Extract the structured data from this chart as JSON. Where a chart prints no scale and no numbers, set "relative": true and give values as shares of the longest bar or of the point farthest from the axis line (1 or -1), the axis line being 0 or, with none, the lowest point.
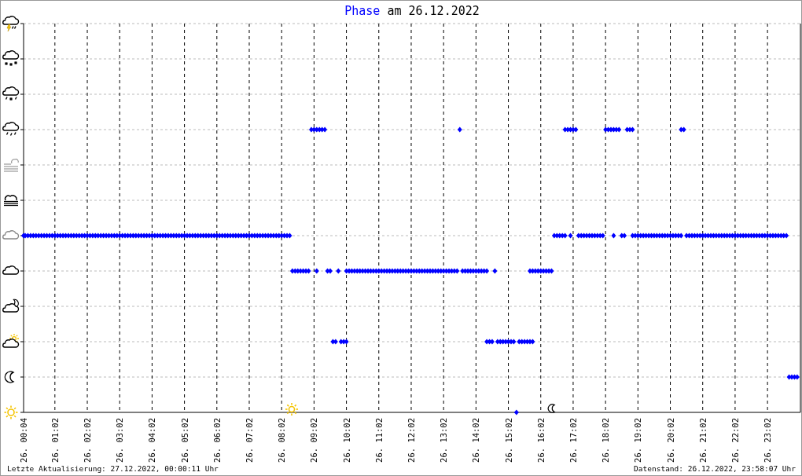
{
  "chart_data": {
    "type": "scatter",
    "title": "Phase am 26.12.2022",
    "color": "#0000ff",
    "marker": "diamond",
    "grid": true,
    "relative": true,
    "xlim": [
      "2022-12-26T00:04",
      "2022-12-27T00:03"
    ],
    "xticks": [
      {
        "value": "2022-12-26T00:04",
        "label": "26. 00:04"
      },
      {
        "value": "2022-12-26T01:02",
        "label": "26. 01:02"
      },
      {
        "value": "2022-12-26T02:02",
        "label": "26. 02:02"
      },
      {
        "value": "2022-12-26T03:02",
        "label": "26. 03:02"
      },
      {
        "value": "2022-12-26T04:02",
        "label": "26. 04:02"
      },
      {
        "value": "2022-12-26T05:02",
        "label": "26. 05:02"
      },
      {
        "value": "2022-12-26T06:02",
        "label": "26. 06:02"
      },
      {
        "value": "2022-12-26T07:02",
        "label": "26. 07:02"
      },
      {
        "value": "2022-12-26T08:02",
        "label": "26. 08:02"
      },
      {
        "value": "2022-12-26T09:02",
        "label": "26. 09:02"
      },
      {
        "value": "2022-12-26T10:02",
        "label": "26. 10:02"
      },
      {
        "value": "2022-12-26T11:02",
        "label": "26. 11:02"
      },
      {
        "value": "2022-12-26T12:02",
        "label": "26. 12:02"
      },
      {
        "value": "2022-12-26T13:02",
        "label": "26. 13:02"
      },
      {
        "value": "2022-12-26T14:02",
        "label": "26. 14:02"
      },
      {
        "value": "2022-12-26T15:02",
        "label": "26. 15:02"
      },
      {
        "value": "2022-12-26T16:02",
        "label": "26. 16:02"
      },
      {
        "value": "2022-12-26T17:02",
        "label": "26. 17:02"
      },
      {
        "value": "2022-12-26T18:02",
        "label": "26. 18:02"
      },
      {
        "value": "2022-12-26T19:02",
        "label": "26. 19:02"
      },
      {
        "value": "2022-12-26T20:02",
        "label": "26. 20:02"
      },
      {
        "value": "2022-12-26T21:02",
        "label": "26. 21:02"
      },
      {
        "value": "2022-12-26T22:02",
        "label": "26. 22:02"
      },
      {
        "value": "2022-12-26T23:02",
        "label": "26. 23:02"
      }
    ],
    "annotations": [
      "Letzte Aktualisierung: 27.12.2022, 00:00:11 Uhr",
      "Datenstand: 26.12.2022, 23:58:07 Uhr"
    ],
    "x": [
      "2022-12-26T00:04",
      "2022-12-26T00:07",
      "2022-12-26T00:12",
      "2022-12-26T00:17",
      "2022-12-26T00:22",
      "2022-12-26T00:27",
      "2022-12-26T00:32",
      "2022-12-26T00:37",
      "2022-12-26T00:42",
      "2022-12-26T00:47",
      "2022-12-26T00:52",
      "2022-12-26T00:57",
      "2022-12-26T01:02",
      "2022-12-26T01:07",
      "2022-12-26T01:12",
      "2022-12-26T01:17",
      "2022-12-26T01:22",
      "2022-12-26T01:27",
      "2022-12-26T01:32",
      "2022-12-26T01:37",
      "2022-12-26T01:42",
      "2022-12-26T01:47",
      "2022-12-26T01:52",
      "2022-12-26T01:57",
      "2022-12-26T02:02",
      "2022-12-26T02:07",
      "2022-12-26T02:12",
      "2022-12-26T02:17",
      "2022-12-26T02:22",
      "2022-12-26T02:27",
      "2022-12-26T02:32",
      "2022-12-26T02:37",
      "2022-12-26T02:42",
      "2022-12-26T02:47",
      "2022-12-26T02:52",
      "2022-12-26T02:57",
      "2022-12-26T03:02",
      "2022-12-26T03:07",
      "2022-12-26T03:12",
      "2022-12-26T03:17",
      "2022-12-26T03:22",
      "2022-12-26T03:27",
      "2022-12-26T03:32",
      "2022-12-26T03:37",
      "2022-12-26T03:42",
      "2022-12-26T03:47",
      "2022-12-26T03:52",
      "2022-12-26T03:57",
      "2022-12-26T04:02",
      "2022-12-26T04:07",
      "2022-12-26T04:12",
      "2022-12-26T04:17",
      "2022-12-26T04:22",
      "2022-12-26T04:27",
      "2022-12-26T04:32",
      "2022-12-26T04:37",
      "2022-12-26T04:42",
      "2022-12-26T04:47",
      "2022-12-26T04:52",
      "2022-12-26T04:57",
      "2022-12-26T05:02",
      "2022-12-26T05:07",
      "2022-12-26T05:12",
      "2022-12-26T05:17",
      "2022-12-26T05:22",
      "2022-12-26T05:27",
      "2022-12-26T05:32",
      "2022-12-26T05:37",
      "2022-12-26T05:42",
      "2022-12-26T05:47",
      "2022-12-26T05:52",
      "2022-12-26T05:57",
      "2022-12-26T06:02",
      "2022-12-26T06:07",
      "2022-12-26T06:12",
      "2022-12-26T06:17",
      "2022-12-26T06:22",
      "2022-12-26T06:27",
      "2022-12-26T06:32",
      "2022-12-26T06:37",
      "2022-12-26T06:42",
      "2022-12-26T06:47",
      "2022-12-26T06:52",
      "2022-12-26T06:57",
      "2022-12-26T07:02",
      "2022-12-26T07:07",
      "2022-12-26T07:12",
      "2022-12-26T07:17",
      "2022-12-26T07:22",
      "2022-12-26T07:27",
      "2022-12-26T07:32",
      "2022-12-26T07:37",
      "2022-12-26T07:42",
      "2022-12-26T07:47",
      "2022-12-26T07:52",
      "2022-12-26T07:57",
      "2022-12-26T08:02",
      "2022-12-26T08:07",
      "2022-12-26T08:12",
      "2022-12-26T08:17",
      "2022-12-26T08:22",
      "2022-12-26T08:27",
      "2022-12-26T08:32",
      "2022-12-26T08:37",
      "2022-12-26T08:42",
      "2022-12-26T08:47",
      "2022-12-26T08:52",
      "2022-12-26T08:57",
      "2022-12-26T09:02",
      "2022-12-26T09:07",
      "2022-12-26T09:07",
      "2022-12-26T09:12",
      "2022-12-26T09:17",
      "2022-12-26T09:22",
      "2022-12-26T09:27",
      "2022-12-26T09:32",
      "2022-12-26T09:37",
      "2022-12-26T09:42",
      "2022-12-26T09:47",
      "2022-12-26T09:52",
      "2022-12-26T09:57",
      "2022-12-26T10:02",
      "2022-12-26T10:02",
      "2022-12-26T10:07",
      "2022-12-26T10:12",
      "2022-12-26T10:17",
      "2022-12-26T10:22",
      "2022-12-26T10:27",
      "2022-12-26T10:32",
      "2022-12-26T10:37",
      "2022-12-26T10:42",
      "2022-12-26T10:47",
      "2022-12-26T10:52",
      "2022-12-26T10:57",
      "2022-12-26T11:02",
      "2022-12-26T11:07",
      "2022-12-26T11:12",
      "2022-12-26T11:17",
      "2022-12-26T11:22",
      "2022-12-26T11:27",
      "2022-12-26T11:32",
      "2022-12-26T11:37",
      "2022-12-26T11:42",
      "2022-12-26T11:47",
      "2022-12-26T11:52",
      "2022-12-26T11:57",
      "2022-12-26T12:02",
      "2022-12-26T12:07",
      "2022-12-26T12:12",
      "2022-12-26T12:17",
      "2022-12-26T12:22",
      "2022-12-26T12:27",
      "2022-12-26T12:32",
      "2022-12-26T12:37",
      "2022-12-26T12:42",
      "2022-12-26T12:47",
      "2022-12-26T12:52",
      "2022-12-26T12:57",
      "2022-12-26T13:02",
      "2022-12-26T13:07",
      "2022-12-26T13:12",
      "2022-12-26T13:17",
      "2022-12-26T13:22",
      "2022-12-26T13:27",
      "2022-12-26T13:32",
      "2022-12-26T13:37",
      "2022-12-26T13:42",
      "2022-12-26T13:47",
      "2022-12-26T13:52",
      "2022-12-26T13:57",
      "2022-12-26T14:02",
      "2022-12-26T14:07",
      "2022-12-26T14:12",
      "2022-12-26T14:17",
      "2022-12-26T14:22",
      "2022-12-26T14:22",
      "2022-12-26T14:27",
      "2022-12-26T14:32",
      "2022-12-26T14:37",
      "2022-12-26T14:42",
      "2022-12-26T14:47",
      "2022-12-26T14:52",
      "2022-12-26T14:57",
      "2022-12-26T15:02",
      "2022-12-26T15:07",
      "2022-12-26T15:12",
      "2022-12-26T15:17",
      "2022-12-26T15:22",
      "2022-12-26T15:27",
      "2022-12-26T15:32",
      "2022-12-26T15:37",
      "2022-12-26T15:42",
      "2022-12-26T15:42",
      "2022-12-26T15:47",
      "2022-12-26T15:47",
      "2022-12-26T15:52",
      "2022-12-26T15:57",
      "2022-12-26T16:02",
      "2022-12-26T16:07",
      "2022-12-26T16:12",
      "2022-12-26T16:17",
      "2022-12-26T16:22",
      "2022-12-26T16:27",
      "2022-12-26T16:32",
      "2022-12-26T16:37",
      "2022-12-26T16:42",
      "2022-12-26T16:47",
      "2022-12-26T16:47",
      "2022-12-26T16:52",
      "2022-12-26T16:57",
      "2022-12-26T16:57",
      "2022-12-26T17:02",
      "2022-12-26T17:07",
      "2022-12-26T17:12",
      "2022-12-26T17:17",
      "2022-12-26T17:22",
      "2022-12-26T17:27",
      "2022-12-26T17:32",
      "2022-12-26T17:37",
      "2022-12-26T17:42",
      "2022-12-26T17:47",
      "2022-12-26T17:52",
      "2022-12-26T17:57",
      "2022-12-26T18:02",
      "2022-12-26T18:07",
      "2022-12-26T18:12",
      "2022-12-26T18:17",
      "2022-12-26T18:17",
      "2022-12-26T18:22",
      "2022-12-26T18:27",
      "2022-12-26T18:32",
      "2022-12-26T18:37",
      "2022-12-26T18:42",
      "2022-12-26T18:47",
      "2022-12-26T18:52",
      "2022-12-26T18:52",
      "2022-12-26T18:57",
      "2022-12-26T19:02",
      "2022-12-26T19:07",
      "2022-12-26T19:12",
      "2022-12-26T19:17",
      "2022-12-26T19:22",
      "2022-12-26T19:27",
      "2022-12-26T19:32",
      "2022-12-26T19:37",
      "2022-12-26T19:42",
      "2022-12-26T19:47",
      "2022-12-26T19:52",
      "2022-12-26T19:57",
      "2022-12-26T20:02",
      "2022-12-26T20:07",
      "2022-12-26T20:12",
      "2022-12-26T20:17",
      "2022-12-26T20:22",
      "2022-12-26T20:22",
      "2022-12-26T20:27",
      "2022-12-26T20:32",
      "2022-12-26T20:37",
      "2022-12-26T20:42",
      "2022-12-26T20:47",
      "2022-12-26T20:52",
      "2022-12-26T20:57",
      "2022-12-26T21:02",
      "2022-12-26T21:07",
      "2022-12-26T21:12",
      "2022-12-26T21:17",
      "2022-12-26T21:22",
      "2022-12-26T21:27",
      "2022-12-26T21:32",
      "2022-12-26T21:37",
      "2022-12-26T21:42",
      "2022-12-26T21:47",
      "2022-12-26T21:52",
      "2022-12-26T21:57",
      "2022-12-26T22:02",
      "2022-12-26T22:07",
      "2022-12-26T22:12",
      "2022-12-26T22:17",
      "2022-12-26T22:22",
      "2022-12-26T22:27",
      "2022-12-26T22:32",
      "2022-12-26T22:37",
      "2022-12-26T22:42",
      "2022-12-26T22:47",
      "2022-12-26T22:52",
      "2022-12-26T22:57",
      "2022-12-26T23:02",
      "2022-12-26T23:07",
      "2022-12-26T23:12",
      "2022-12-26T23:17",
      "2022-12-26T23:22",
      "2022-12-26T23:27",
      "2022-12-26T23:32",
      "2022-12-26T23:37",
      "2022-12-26T23:42",
      "2022-12-26T23:47",
      "2022-12-26T23:52",
      "2022-12-26T23:57"
    ],
    "values": [
      0.625,
      0.625,
      0.625,
      0.625,
      0.625,
      0.625,
      0.625,
      0.625,
      0.625,
      0.625,
      0.625,
      0.625,
      0.625,
      0.625,
      0.625,
      0.625,
      0.625,
      0.625,
      0.625,
      0.625,
      0.625,
      0.625,
      0.625,
      0.625,
      0.625,
      0.625,
      0.625,
      0.625,
      0.625,
      0.625,
      0.625,
      0.625,
      0.625,
      0.625,
      0.625,
      0.625,
      0.625,
      0.625,
      0.625,
      0.625,
      0.625,
      0.625,
      0.625,
      0.625,
      0.625,
      0.625,
      0.625,
      0.625,
      0.625,
      0.625,
      0.625,
      0.625,
      0.625,
      0.625,
      0.625,
      0.625,
      0.625,
      0.625,
      0.625,
      0.625,
      0.625,
      0.625,
      0.625,
      0.625,
      0.625,
      0.625,
      0.625,
      0.625,
      0.625,
      0.625,
      0.625,
      0.625,
      0.625,
      0.625,
      0.625,
      0.625,
      0.625,
      0.625,
      0.625,
      0.625,
      0.625,
      0.625,
      0.625,
      0.625,
      0.625,
      0.625,
      0.625,
      0.625,
      0.625,
      0.625,
      0.625,
      0.625,
      0.625,
      0.625,
      0.625,
      0.625,
      0.625,
      0.625,
      0.625,
      0.625,
      0.5,
      0.5,
      0.5,
      0.5,
      0.5,
      0.5,
      0.5,
      1,
      1,
      1,
      0.5,
      1,
      1,
      1,
      0.5,
      0.5,
      0.25,
      0.25,
      0.5,
      0.25,
      0.25,
      0.25,
      0.5,
      0.5,
      0.5,
      0.5,
      0.5,
      0.5,
      0.5,
      0.5,
      0.5,
      0.5,
      0.5,
      0.5,
      0.5,
      0.5,
      0.5,
      0.5,
      0.5,
      0.5,
      0.5,
      0.5,
      0.5,
      0.5,
      0.5,
      0.5,
      0.5,
      0.5,
      0.5,
      0.5,
      0.5,
      0.5,
      0.5,
      0.5,
      0.5,
      0.5,
      0.5,
      0.5,
      0.5,
      0.5,
      0.5,
      0.5,
      0.5,
      0.5,
      1,
      0.5,
      0.5,
      0.5,
      0.5,
      0.5,
      0.5,
      0.5,
      0.5,
      0.5,
      0.5,
      0.25,
      0.25,
      0.25,
      0.5,
      0.25,
      0.25,
      0.25,
      0.25,
      0.25,
      0.25,
      0.25,
      0,
      0.25,
      0.25,
      0.25,
      0.25,
      0.25,
      0.5,
      0.25,
      0.5,
      0.5,
      0.5,
      0.5,
      0.5,
      0.5,
      0.5,
      0.5,
      0.625,
      0.625,
      0.625,
      0.625,
      0.625,
      1,
      1,
      1,
      0.625,
      1,
      1,
      0.625,
      0.625,
      0.625,
      0.625,
      0.625,
      0.625,
      0.625,
      0.625,
      0.625,
      0.625,
      1,
      1,
      1,
      1,
      0.625,
      1,
      1,
      0.625,
      0.625,
      1,
      1,
      1,
      0.625,
      0.625,
      0.625,
      0.625,
      0.625,
      0.625,
      0.625,
      0.625,
      0.625,
      0.625,
      0.625,
      0.625,
      0.625,
      0.625,
      0.625,
      0.625,
      0.625,
      0.625,
      0.625,
      1,
      1,
      0.625,
      0.625,
      0.625,
      0.625,
      0.625,
      0.625,
      0.625,
      0.625,
      0.625,
      0.625,
      0.625,
      0.625,
      0.625,
      0.625,
      0.625,
      0.625,
      0.625,
      0.625,
      0.625,
      0.625,
      0.625,
      0.625,
      0.625,
      0.625,
      0.625,
      0.625,
      0.625,
      0.625,
      0.625,
      0.625,
      0.625,
      0.625,
      0.625,
      0.625,
      0.625,
      0.625,
      0.625,
      0.625,
      0.125,
      0.125,
      0.125,
      0.125
    ]
  }
}
